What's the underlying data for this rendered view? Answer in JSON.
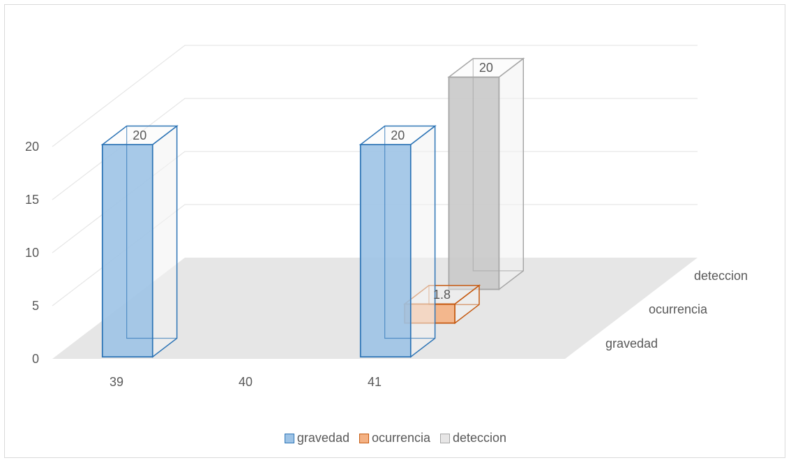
{
  "chart_data": {
    "type": "bar",
    "title": "",
    "xlabel": "",
    "ylabel": "",
    "ylim": [
      0,
      20
    ],
    "yticks": [
      0,
      5,
      10,
      15,
      20
    ],
    "categories": [
      "39",
      "40",
      "41"
    ],
    "depth_categories": [
      "gravedad",
      "ocurrencia",
      "deteccion"
    ],
    "series": [
      {
        "name": "gravedad",
        "values": [
          20,
          null,
          20
        ],
        "data_labels": [
          "20",
          "",
          "20"
        ],
        "color": "#9dc3e6",
        "edge": "#2e75b6"
      },
      {
        "name": "ocurrencia",
        "values": [
          null,
          null,
          1.8
        ],
        "data_labels": [
          "",
          "",
          "1.8"
        ],
        "color": "#f4b183",
        "edge": "#c55a11"
      },
      {
        "name": "deteccion",
        "values": [
          null,
          null,
          20
        ],
        "data_labels": [
          "",
          "",
          "20"
        ],
        "color": "#e7e6e6",
        "edge": "#a6a6a6"
      }
    ],
    "grid": true,
    "legend_position": "bottom"
  }
}
